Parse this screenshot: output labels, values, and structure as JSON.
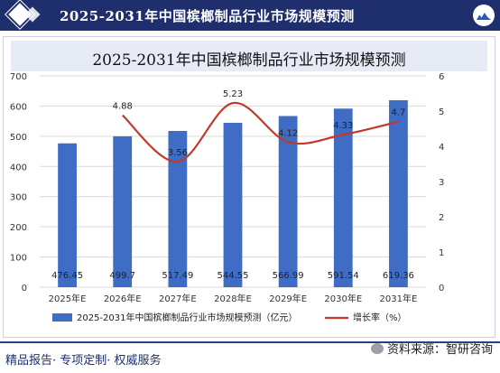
{
  "header": {
    "title": "2025-2031年中国槟榔制品行业市场规模预测"
  },
  "chart_data": {
    "type": "bar+line",
    "title": "2025-2031年中国槟榔制品行业市场规模预测",
    "categories": [
      "2025年E",
      "2026年E",
      "2027年E",
      "2028年E",
      "2029年E",
      "2030年E",
      "2031年E"
    ],
    "series": [
      {
        "name": "2025-2031年中国槟榔制品行业市场规模预测（亿元）",
        "type": "bar",
        "axis": "left",
        "values": [
          476.45,
          499.7,
          517.49,
          544.55,
          566.99,
          591.54,
          619.36
        ],
        "labels": [
          "476.45",
          "499.7",
          "517.49",
          "544.55",
          "566.99",
          "591.54",
          "619.36"
        ]
      },
      {
        "name": "增长率（%）",
        "type": "line",
        "axis": "right",
        "values": [
          null,
          4.88,
          3.56,
          5.23,
          4.12,
          4.33,
          4.7
        ],
        "labels": [
          "",
          "4.88",
          "3.56",
          "5.23",
          "4.12",
          "4.33",
          "4.7"
        ]
      }
    ],
    "y_left": {
      "min": 0,
      "max": 700,
      "ticks": [
        "0",
        "100",
        "200",
        "300",
        "400",
        "500",
        "600",
        "700"
      ]
    },
    "y_right": {
      "min": 0,
      "max": 6,
      "ticks": [
        "0",
        "1",
        "2",
        "3",
        "4",
        "5",
        "6"
      ]
    },
    "grid": true,
    "legend": "bottom",
    "colors": {
      "bar": "#3f6cc4",
      "line": "#c0392b"
    }
  },
  "footer": {
    "left": "精品报告· 专项定制· 权威服务",
    "right": "资料来源：智研咨询"
  }
}
